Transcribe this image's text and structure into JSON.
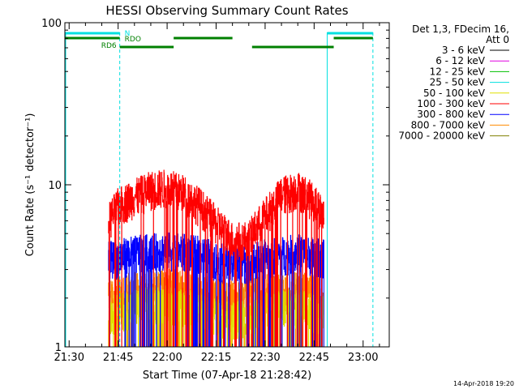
{
  "chart_data": {
    "type": "line",
    "title": "HESSI Observing Summary Count Rates",
    "xlabel": "Start Time (07-Apr-18 21:28:42)",
    "ylabel": "Count Rate (s⁻¹ detector⁻¹)",
    "y_scale": "log",
    "ylim": [
      1,
      100
    ],
    "xlim": [
      "21:28:42",
      "23:08:00"
    ],
    "x_ticks": [
      "21:30",
      "21:45",
      "22:00",
      "22:15",
      "22:30",
      "22:45",
      "23:00"
    ],
    "y_ticks": [
      "1",
      "10",
      "100"
    ],
    "legend_header": [
      "Det 1,3, FDecim 16,",
      "Att 0"
    ],
    "legend_position": "right",
    "series": [
      {
        "name": "3 - 6 keV",
        "color": "#000000"
      },
      {
        "name": "6 - 12 keV",
        "color": "#e000e0"
      },
      {
        "name": "12 - 25 keV",
        "color": "#00c000"
      },
      {
        "name": "25 - 50 keV",
        "color": "#00e0e0"
      },
      {
        "name": "50 - 100 keV",
        "color": "#e0e000"
      },
      {
        "name": "100 - 300 keV",
        "color": "#ff0000"
      },
      {
        "name": "300 - 800 keV",
        "color": "#0000ff"
      },
      {
        "name": "800 - 7000 keV",
        "color": "#ff8c00"
      },
      {
        "name": "7000 - 20000 keV",
        "color": "#808000"
      }
    ],
    "data_series": [
      {
        "band": "100 - 300 keV",
        "color": "#ff0000",
        "x": [
          "21:42",
          "21:45",
          "21:50",
          "21:55",
          "22:00",
          "22:05",
          "22:10",
          "22:15",
          "22:20",
          "22:25",
          "22:30",
          "22:35",
          "22:40",
          "22:45",
          "22:48"
        ],
        "y": [
          6.0,
          7.5,
          8.5,
          9.5,
          9.8,
          9.0,
          7.5,
          5.8,
          4.6,
          4.7,
          6.5,
          8.8,
          9.5,
          8.0,
          6.5
        ]
      },
      {
        "band": "300 - 800 keV",
        "color": "#0000ff",
        "x": [
          "21:42",
          "21:50",
          "22:00",
          "22:10",
          "22:20",
          "22:30",
          "22:40",
          "22:48"
        ],
        "y": [
          3.5,
          3.8,
          4.0,
          3.8,
          3.2,
          3.6,
          3.9,
          3.6
        ]
      },
      {
        "band": "800 - 7000 keV",
        "color": "#ff8c00",
        "x": [
          "21:42",
          "21:50",
          "22:00",
          "22:10",
          "22:20",
          "22:30",
          "22:40",
          "22:48"
        ],
        "y": [
          2.0,
          2.3,
          2.4,
          2.2,
          2.0,
          2.2,
          2.3,
          2.1
        ]
      },
      {
        "band": "50 - 100 keV",
        "color": "#e0e000",
        "x": [
          "21:42",
          "21:50",
          "22:00",
          "22:10",
          "22:20",
          "22:30",
          "22:40",
          "22:48"
        ],
        "y": [
          1.6,
          1.8,
          1.9,
          1.7,
          1.5,
          1.7,
          1.8,
          1.6
        ]
      }
    ],
    "flag_bars": [
      {
        "label": "N",
        "color": "#00e0e0",
        "segments": [
          [
            "21:28:42",
            "21:45:30"
          ],
          [
            "22:49:00",
            "23:03:00"
          ]
        ]
      },
      {
        "label": "RDO",
        "color": "#008000",
        "segments": [
          [
            "21:28:42",
            "21:45:30"
          ],
          [
            "22:02:00",
            "22:20:00"
          ],
          [
            "22:51:00",
            "23:03:00"
          ]
        ]
      },
      {
        "label": "RD6",
        "color": "#008000",
        "segments": [
          [
            "21:45:30",
            "22:02:00"
          ],
          [
            "22:26:00",
            "22:51:00"
          ]
        ]
      }
    ],
    "night_lines": [
      {
        "time": "21:45:30",
        "style": "dashed",
        "color": "#00e0e0"
      },
      {
        "time": "22:49:00",
        "style": "solid",
        "color": "#00e0e0"
      },
      {
        "time": "23:03:00",
        "style": "dashed",
        "color": "#00e0e0"
      }
    ],
    "grid": false
  },
  "footer": {
    "timestamp": "14-Apr-2018 19:20"
  }
}
